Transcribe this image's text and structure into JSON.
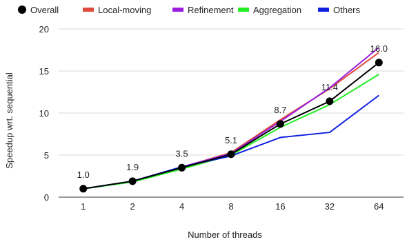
{
  "chart_data": {
    "type": "line",
    "title": "",
    "xlabel": "Number of threads",
    "ylabel": "Speedup wrt. sequential",
    "categories": [
      "1",
      "2",
      "4",
      "8",
      "16",
      "32",
      "64"
    ],
    "ylim": [
      0,
      20
    ],
    "yticks": [
      0,
      5,
      10,
      15,
      20
    ],
    "grid": "horizontal",
    "legend_position": "top",
    "series": [
      {
        "name": "Overall",
        "color": "#000000",
        "markers": true,
        "values": [
          1.0,
          1.9,
          3.5,
          5.1,
          8.7,
          11.4,
          16.0
        ],
        "labels": [
          "1.0",
          "1.9",
          "3.5",
          "5.1",
          "8.7",
          "11.4",
          "16.0"
        ]
      },
      {
        "name": "Local-moving",
        "color": "#e04b3c",
        "values": [
          1.0,
          1.9,
          3.55,
          5.3,
          9.2,
          12.9,
          17.2
        ]
      },
      {
        "name": "Refinement",
        "color": "#9a1de0",
        "values": [
          1.0,
          1.85,
          3.6,
          5.2,
          9.0,
          13.0,
          17.8
        ]
      },
      {
        "name": "Aggregation",
        "color": "#22ee22",
        "values": [
          1.0,
          1.8,
          3.35,
          5.0,
          8.3,
          11.0,
          14.6
        ]
      },
      {
        "name": "Others",
        "color": "#1020e0",
        "values": [
          1.0,
          1.9,
          3.6,
          4.9,
          7.1,
          7.7,
          12.1
        ]
      }
    ]
  }
}
